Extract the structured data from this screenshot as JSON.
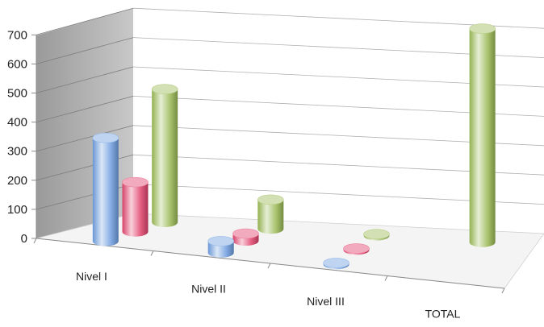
{
  "chart_data": {
    "type": "bar",
    "subtype": "3d-cylinder",
    "categories": [
      "Nivel I",
      "Nivel II",
      "Nivel III",
      "TOTAL"
    ],
    "series": [
      {
        "color": "#6f9fe0",
        "values": [
          355,
          40,
          5,
          0
        ]
      },
      {
        "color": "#e2456e",
        "values": [
          170,
          25,
          5,
          0
        ]
      },
      {
        "color": "#9bba55",
        "values": [
          455,
          100,
          5,
          730
        ]
      }
    ],
    "yticks": [
      "0",
      "100",
      "200",
      "300",
      "400",
      "500",
      "600",
      "700"
    ],
    "ylim": [
      0,
      700
    ],
    "grid": true,
    "legend": "none"
  }
}
